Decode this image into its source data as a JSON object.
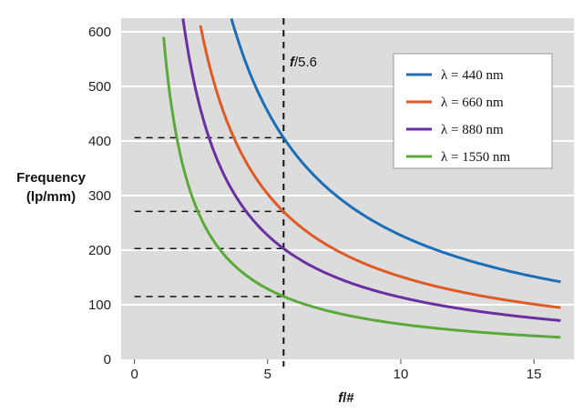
{
  "chart_data": {
    "type": "line",
    "title": "",
    "ylabel_line1": "Frequency",
    "ylabel_line2": "(lp/mm)",
    "xlabel_italic": "f",
    "xlabel_rest": "/#",
    "xlim": [
      -0.5,
      16.5
    ],
    "ylim": [
      0,
      625
    ],
    "xticks": [
      0,
      5,
      10,
      15
    ],
    "yticks": [
      0,
      100,
      200,
      300,
      400,
      500,
      600
    ],
    "grid": true,
    "legend_position": "top-right",
    "formula": "frequency = 1 / (lambda_mm * fnumber)",
    "series": [
      {
        "name": "λ = 440 nm",
        "wavelength_nm": 440,
        "color": "#1a6fb8",
        "x_range": [
          3.64,
          16.0
        ],
        "values_at_xticks": [
          null,
          455,
          227,
          152
        ]
      },
      {
        "name": "λ = 660 nm",
        "wavelength_nm": 660,
        "color": "#e05a26",
        "x_range": [
          2.42,
          16.0
        ],
        "values_at_xticks": [
          null,
          303,
          152,
          101
        ]
      },
      {
        "name": "λ = 880 nm",
        "wavelength_nm": 880,
        "color": "#6a2fa0",
        "x_range": [
          1.82,
          16.0
        ],
        "values_at_xticks": [
          null,
          227,
          114,
          76
        ]
      },
      {
        "name": "λ = 1550 nm",
        "wavelength_nm": 1550,
        "color": "#5aaa3a",
        "x_range": [
          1.03,
          16.0
        ],
        "values_at_xticks": [
          null,
          129,
          65,
          43
        ]
      }
    ],
    "marker": {
      "label_italic": "f",
      "label_rest": "/5.6",
      "x": 5.6,
      "intersections": [
        406,
        271,
        203,
        115
      ]
    }
  }
}
